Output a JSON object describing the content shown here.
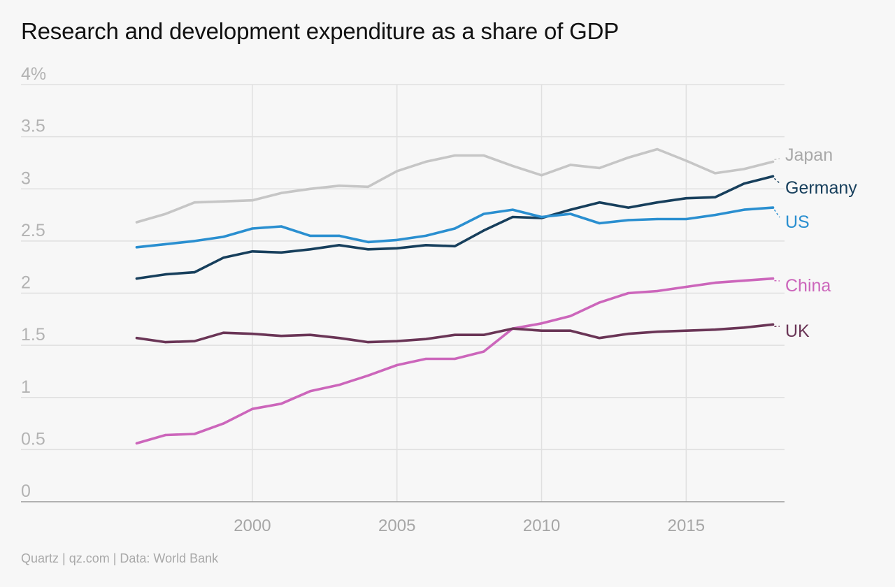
{
  "title": "Research and development expenditure as a share of GDP",
  "footer": "Quartz | qz.com | Data: World Bank",
  "chart_data": {
    "type": "line",
    "title": "Research and development expenditure as a share of GDP",
    "xlabel": "",
    "ylabel": "",
    "x": [
      1996,
      1997,
      1998,
      1999,
      2000,
      2001,
      2002,
      2003,
      2004,
      2005,
      2006,
      2007,
      2008,
      2009,
      2010,
      2011,
      2012,
      2013,
      2014,
      2015,
      2016,
      2017,
      2018
    ],
    "xlim": [
      1992,
      2018.4
    ],
    "ylim": [
      0,
      4
    ],
    "x_ticks": [
      2000,
      2005,
      2010,
      2015
    ],
    "x_tick_labels": [
      "2000",
      "2005",
      "2010",
      "2015"
    ],
    "y_ticks": [
      0,
      0.5,
      1,
      1.5,
      2,
      2.5,
      3,
      3.5,
      4
    ],
    "y_tick_labels": [
      "0",
      "0.5",
      "1",
      "1.5",
      "2",
      "2.5",
      "3",
      "3.5",
      "4%"
    ],
    "grid": true,
    "legend": "direct labels at right end of lines",
    "series": [
      {
        "name": "Japan",
        "color": "#c6c6c6",
        "label_color": "#a9a9a9",
        "values": [
          2.68,
          2.76,
          2.87,
          2.88,
          2.89,
          2.96,
          3.0,
          3.03,
          3.02,
          3.17,
          3.26,
          3.32,
          3.32,
          3.22,
          3.13,
          3.23,
          3.2,
          3.3,
          3.38,
          3.27,
          3.15,
          3.19,
          3.26
        ]
      },
      {
        "name": "Germany",
        "color": "#173f5c",
        "label_color": "#173f5c",
        "values": [
          2.14,
          2.18,
          2.2,
          2.34,
          2.4,
          2.39,
          2.42,
          2.46,
          2.42,
          2.43,
          2.46,
          2.45,
          2.6,
          2.73,
          2.72,
          2.8,
          2.87,
          2.82,
          2.87,
          2.91,
          2.92,
          3.05,
          3.12
        ]
      },
      {
        "name": "US",
        "color": "#2a8fd0",
        "label_color": "#2a8fd0",
        "values": [
          2.44,
          2.47,
          2.5,
          2.54,
          2.62,
          2.64,
          2.55,
          2.55,
          2.49,
          2.51,
          2.55,
          2.62,
          2.76,
          2.8,
          2.73,
          2.76,
          2.67,
          2.7,
          2.71,
          2.71,
          2.75,
          2.8,
          2.82
        ]
      },
      {
        "name": "China",
        "color": "#cc66bb",
        "label_color": "#cc66bb",
        "values": [
          0.56,
          0.64,
          0.65,
          0.75,
          0.89,
          0.94,
          1.06,
          1.12,
          1.21,
          1.31,
          1.37,
          1.37,
          1.44,
          1.66,
          1.71,
          1.78,
          1.91,
          2.0,
          2.02,
          2.06,
          2.1,
          2.12,
          2.14
        ]
      },
      {
        "name": "UK",
        "color": "#6a3556",
        "label_color": "#6a3556",
        "values": [
          1.57,
          1.53,
          1.54,
          1.62,
          1.61,
          1.59,
          1.6,
          1.57,
          1.53,
          1.54,
          1.56,
          1.6,
          1.6,
          1.66,
          1.64,
          1.64,
          1.57,
          1.61,
          1.63,
          1.64,
          1.65,
          1.67,
          1.7
        ]
      }
    ]
  }
}
